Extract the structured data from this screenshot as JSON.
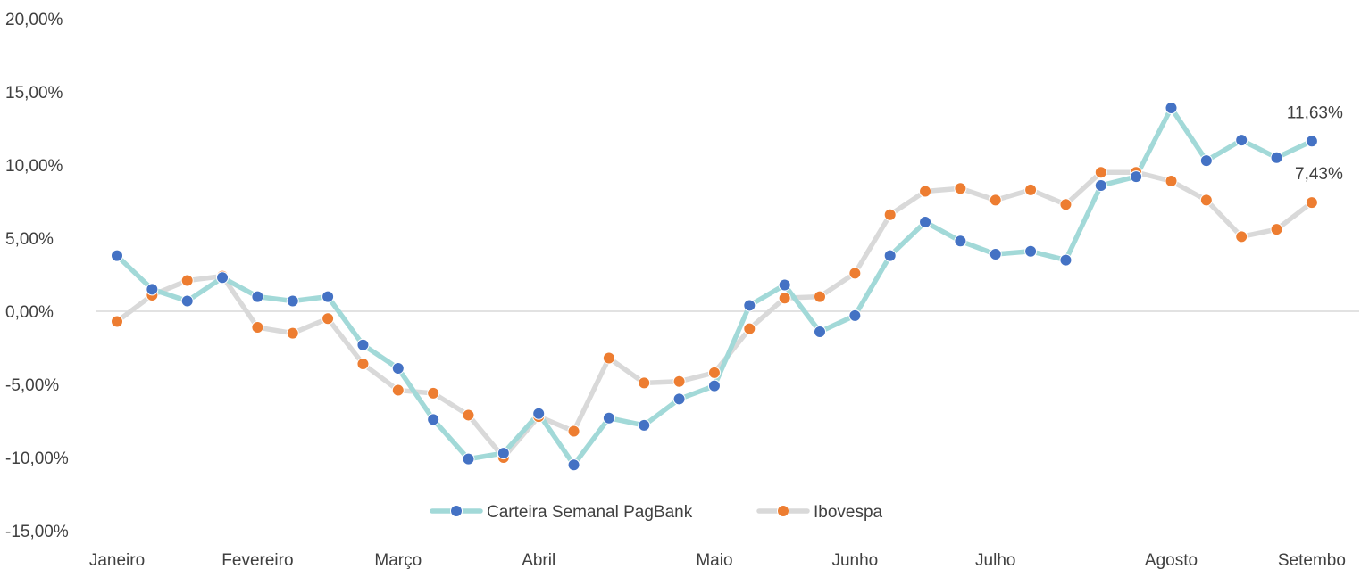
{
  "chart_data": {
    "type": "line",
    "yticks": [
      "20,00%",
      "15,00%",
      "10,00%",
      "5,00%",
      "0,00%",
      "-5,00%",
      "-10,00%",
      "-15,00%"
    ],
    "ylim": [
      -15,
      20
    ],
    "xtick_labels": [
      "Janeiro",
      "Fevereiro",
      "Março",
      "Abril",
      "Maio",
      "Junho",
      "Julho",
      "Agosto",
      "Setembo"
    ],
    "xtick_positions": [
      0,
      4,
      8,
      12,
      17,
      21,
      25,
      30,
      34
    ],
    "num_points": 35,
    "series": [
      {
        "name": "Carteira Semanal PagBank",
        "line_color": "#a2d9d8",
        "marker_color": "#4472c4",
        "values": [
          3.8,
          1.5,
          0.7,
          2.3,
          1.0,
          0.7,
          1.0,
          -2.3,
          -3.9,
          -7.4,
          -10.1,
          -9.7,
          -7.0,
          -10.5,
          -7.3,
          -7.8,
          -6.0,
          -5.1,
          0.4,
          1.8,
          -1.4,
          -0.3,
          3.8,
          6.1,
          4.8,
          3.9,
          4.1,
          3.5,
          8.6,
          9.2,
          13.9,
          10.3,
          11.7,
          10.5,
          11.63
        ],
        "end_label": "11,63%"
      },
      {
        "name": "Ibovespa",
        "line_color": "#d9d9d9",
        "marker_color": "#ed7d31",
        "values": [
          -0.7,
          1.1,
          2.1,
          2.4,
          -1.1,
          -1.5,
          -0.5,
          -3.6,
          -5.4,
          -5.6,
          -7.1,
          -10.0,
          -7.2,
          -8.2,
          -3.2,
          -4.9,
          -4.8,
          -4.2,
          -1.2,
          0.9,
          1.0,
          2.6,
          6.6,
          8.2,
          8.4,
          7.6,
          8.3,
          7.3,
          9.5,
          9.5,
          8.9,
          7.6,
          5.1,
          5.6,
          7.43
        ],
        "end_label": "7,43%"
      }
    ],
    "legend_position": "bottom-center",
    "zero_line_color": "#d9d9d9"
  }
}
